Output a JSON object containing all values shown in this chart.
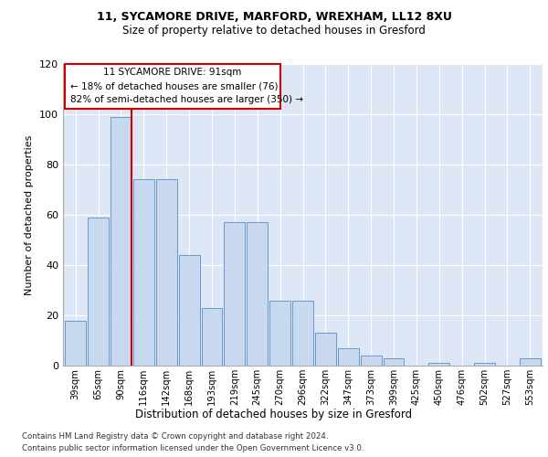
{
  "title_line1": "11, SYCAMORE DRIVE, MARFORD, WREXHAM, LL12 8XU",
  "title_line2": "Size of property relative to detached houses in Gresford",
  "xlabel": "Distribution of detached houses by size in Gresford",
  "ylabel": "Number of detached properties",
  "categories": [
    "39sqm",
    "65sqm",
    "90sqm",
    "116sqm",
    "142sqm",
    "168sqm",
    "193sqm",
    "219sqm",
    "245sqm",
    "270sqm",
    "296sqm",
    "322sqm",
    "347sqm",
    "373sqm",
    "399sqm",
    "425sqm",
    "450sqm",
    "476sqm",
    "502sqm",
    "527sqm",
    "553sqm"
  ],
  "bar_values": [
    18,
    59,
    99,
    74,
    74,
    44,
    23,
    57,
    57,
    26,
    26,
    13,
    7,
    4,
    3,
    0,
    1,
    0,
    1,
    0,
    3
  ],
  "property_bar_index": 2,
  "annotation_title": "11 SYCAMORE DRIVE: 91sqm",
  "annotation_line2": "← 18% of detached houses are smaller (76)",
  "annotation_line3": "82% of semi-detached houses are larger (350) →",
  "bar_color": "#c8d9ef",
  "bar_edge_color": "#6699cc",
  "vline_color": "#cc0000",
  "annotation_box_edgecolor": "#cc0000",
  "bg_color": "#dde6f5",
  "footer_line1": "Contains HM Land Registry data © Crown copyright and database right 2024.",
  "footer_line2": "Contains public sector information licensed under the Open Government Licence v3.0.",
  "ylim": [
    0,
    120
  ],
  "yticks": [
    0,
    20,
    40,
    60,
    80,
    100,
    120
  ]
}
